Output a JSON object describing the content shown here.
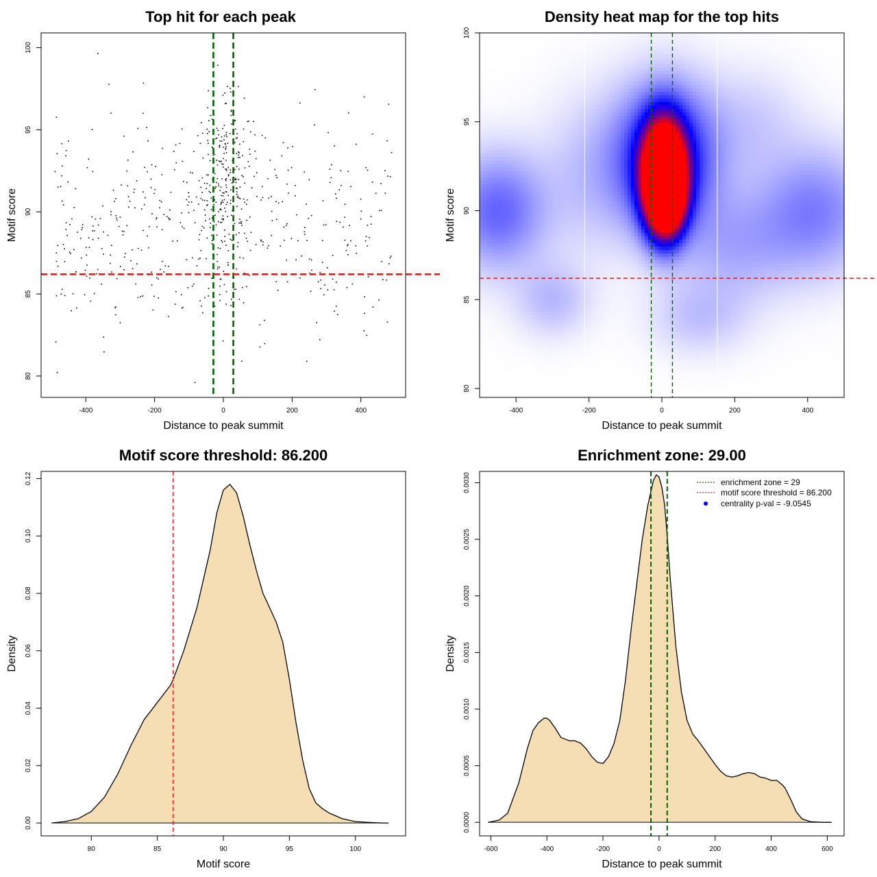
{
  "colors": {
    "threshold_line": "#e41a1c",
    "zone_line": "#006400",
    "density_fill": "#f5deb3",
    "legend_dot": "#0000ff",
    "heat_low": "#ffffff",
    "heat_mid": "#0000ff",
    "heat_high": "#ff0000"
  },
  "chart_data": [
    {
      "id": "scatter",
      "type": "scatter",
      "title": "Top hit for each peak",
      "xlabel": "Distance to peak summit",
      "ylabel": "Motif score",
      "xlim": [
        -530,
        530
      ],
      "ylim": [
        78.7,
        100.9
      ],
      "xticks": [
        -400,
        -200,
        0,
        200,
        400
      ],
      "yticks": [
        80,
        85,
        90,
        95,
        100
      ],
      "hline": 86.2,
      "vlines": [
        -29,
        29
      ],
      "n_points": 720,
      "point_distribution": {
        "description": "approximate reconstruction of dots: dense central cluster within about ±60 of summit, sparse background over ±500",
        "center_fraction": 0.38,
        "center_x_sd": 40,
        "center_y_mean": 91.6,
        "center_y_sd": 2.7,
        "background_x_range": [
          -490,
          490
        ],
        "background_y_mean": 89.0,
        "background_y_sd": 3.4
      }
    },
    {
      "id": "heatmap",
      "type": "heatmap",
      "title": "Density heat map for the top hits",
      "xlabel": "Distance to peak summit",
      "ylabel": "Motif score",
      "xlim": [
        -500,
        500
      ],
      "ylim": [
        79.5,
        100
      ],
      "xticks": [
        -400,
        -200,
        0,
        200,
        400
      ],
      "yticks": [
        80,
        85,
        90,
        95,
        100
      ],
      "hline": 86.2,
      "vlines": [
        -29,
        29
      ],
      "white_lines": [
        -212,
        152
      ],
      "colormap": [
        "#ffffff",
        "#0000ff",
        "#ff0000"
      ],
      "kernels": [
        {
          "x": 5,
          "y": 92.0,
          "sx": 38,
          "sy": 1.9,
          "w": 2.2
        },
        {
          "x": 12,
          "y": 90.5,
          "sx": 32,
          "sy": 1.3,
          "w": 0.9
        },
        {
          "x": 10,
          "y": 93.0,
          "sx": 95,
          "sy": 2.7,
          "w": 0.55
        },
        {
          "x": -450,
          "y": 90.0,
          "sx": 90,
          "sy": 2.2,
          "w": 0.3
        },
        {
          "x": 420,
          "y": 90.0,
          "sx": 110,
          "sy": 2.4,
          "w": 0.24
        },
        {
          "x": -300,
          "y": 85.0,
          "sx": 70,
          "sy": 1.4,
          "w": 0.12
        },
        {
          "x": 200,
          "y": 88.0,
          "sx": 110,
          "sy": 2.2,
          "w": 0.14
        },
        {
          "x": -200,
          "y": 92.0,
          "sx": 90,
          "sy": 3.0,
          "w": 0.1
        },
        {
          "x": 100,
          "y": 84.0,
          "sx": 90,
          "sy": 1.4,
          "w": 0.1
        },
        {
          "x": 250,
          "y": 95.0,
          "sx": 90,
          "sy": 2.0,
          "w": 0.08
        }
      ]
    },
    {
      "id": "score_density",
      "type": "area",
      "title": "Motif score threshold: 86.200",
      "xlabel": "Motif score",
      "ylabel": "Density",
      "xlim": [
        76.2,
        103.8
      ],
      "ylim": [
        -0.0045,
        0.1225
      ],
      "xticks": [
        80,
        85,
        90,
        95,
        100
      ],
      "yticks": [
        0.0,
        0.02,
        0.04,
        0.06,
        0.08,
        0.1,
        0.12
      ],
      "ytick_labels": [
        "0.00",
        "0.02",
        "0.04",
        "0.06",
        "0.08",
        "0.10",
        "0.12"
      ],
      "vline": 86.2,
      "x": [
        77.0,
        78.0,
        79.0,
        80.0,
        81.0,
        82.0,
        83.0,
        84.0,
        84.5,
        85.0,
        86.0,
        86.2,
        87.0,
        88.0,
        89.0,
        89.5,
        90.0,
        90.5,
        91.0,
        91.5,
        92.0,
        92.5,
        93.0,
        93.5,
        94.0,
        94.5,
        95.0,
        95.5,
        96.0,
        96.5,
        97.0,
        97.5,
        98.0,
        99.0,
        100.0,
        101.0,
        102.0,
        102.5
      ],
      "y": [
        0.0,
        0.0005,
        0.0015,
        0.004,
        0.009,
        0.017,
        0.027,
        0.036,
        0.039,
        0.042,
        0.048,
        0.05,
        0.06,
        0.075,
        0.095,
        0.108,
        0.116,
        0.118,
        0.115,
        0.107,
        0.097,
        0.088,
        0.08,
        0.075,
        0.07,
        0.063,
        0.05,
        0.035,
        0.022,
        0.012,
        0.007,
        0.005,
        0.0035,
        0.0015,
        0.0005,
        0.0002,
        0.0,
        0.0
      ]
    },
    {
      "id": "position_density",
      "type": "area",
      "title": "Enrichment zone: 29.00",
      "xlabel": "Distance to peak summit",
      "ylabel": "Density",
      "xlim": [
        -640,
        660
      ],
      "ylim": [
        -0.00012,
        0.0031
      ],
      "xticks": [
        -600,
        -400,
        -200,
        0,
        200,
        400,
        600
      ],
      "yticks": [
        0.0,
        0.0005,
        0.001,
        0.0015,
        0.002,
        0.0025,
        0.003
      ],
      "ytick_labels": [
        "0.0000",
        "0.0005",
        "0.0010",
        "0.0015",
        "0.0020",
        "0.0025",
        "0.0030"
      ],
      "vlines": [
        -29,
        29
      ],
      "x": [
        -610,
        -570,
        -540,
        -500,
        -470,
        -450,
        -430,
        -410,
        -400,
        -390,
        -370,
        -350,
        -320,
        -300,
        -280,
        -260,
        -240,
        -220,
        -200,
        -180,
        -160,
        -140,
        -120,
        -100,
        -80,
        -60,
        -40,
        -20,
        -10,
        0,
        10,
        20,
        30,
        40,
        60,
        80,
        100,
        120,
        140,
        160,
        180,
        200,
        220,
        240,
        260,
        280,
        300,
        320,
        340,
        360,
        380,
        400,
        420,
        440,
        450,
        470,
        490,
        510,
        540,
        580,
        615
      ],
      "y": [
        0.0,
        2e-05,
        8e-05,
        0.00035,
        0.00065,
        0.00081,
        0.00088,
        0.00092,
        0.00092,
        0.0009,
        0.00083,
        0.00075,
        0.00072,
        0.00072,
        0.0007,
        0.00065,
        0.00058,
        0.00053,
        0.00052,
        0.00058,
        0.0007,
        0.0009,
        0.00125,
        0.0017,
        0.0021,
        0.0025,
        0.0028,
        0.00302,
        0.00307,
        0.00305,
        0.00296,
        0.0028,
        0.0025,
        0.00215,
        0.00155,
        0.00115,
        0.0009,
        0.00078,
        0.00072,
        0.00065,
        0.00058,
        0.00051,
        0.00045,
        0.00041,
        0.0004,
        0.00041,
        0.00043,
        0.00044,
        0.00043,
        0.0004,
        0.00039,
        0.00037,
        0.00037,
        0.00033,
        0.0003,
        0.0002,
        9e-05,
        3e-05,
        5e-06,
        0.0,
        0.0
      ],
      "legend": {
        "position": "top-right",
        "entries": [
          {
            "label": "enrichment zone = 29",
            "style": "line",
            "color": "#006400"
          },
          {
            "label": "motif score threshold = 86.200",
            "style": "line",
            "color": "#e41a1c"
          },
          {
            "label": "centrality p-val = -9.0545",
            "style": "dot",
            "color": "#0000ff"
          }
        ]
      }
    }
  ]
}
